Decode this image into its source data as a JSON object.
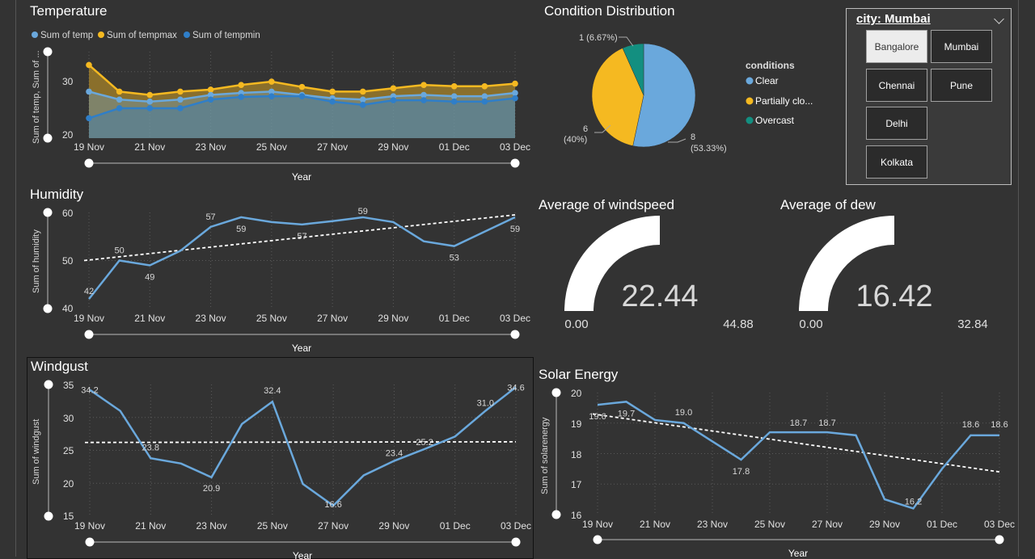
{
  "x_ticks": [
    "19 Nov",
    "21 Nov",
    "23 Nov",
    "25 Nov",
    "27 Nov",
    "29 Nov",
    "01 Dec",
    "03 Dec"
  ],
  "x_axis_title": "Year",
  "colors": {
    "temp": "#6aa8dc",
    "tempmax": "#f5b921",
    "tempmin": "#2f7ec8",
    "line": "#6aa8dc",
    "clear": "#6aa8dc",
    "partly": "#f5b921",
    "overcast": "#138f80"
  },
  "temperature": {
    "title": "Temperature",
    "legend": [
      "Sum of temp",
      "Sum of tempmax",
      "Sum of tempmin"
    ],
    "ylabel": "Sum of temp, Sum of ...",
    "yticks": [
      "30",
      "20"
    ]
  },
  "humidity": {
    "title": "Humidity",
    "ylabel": "Sum of humidity",
    "yticks": [
      "60",
      "50",
      "40"
    ],
    "labels": [
      "42",
      "50",
      "49",
      "57",
      "59",
      "57",
      "59",
      "53",
      "59"
    ]
  },
  "windgust": {
    "title": "Windgust",
    "ylabel": "Sum of windgust",
    "yticks": [
      "35",
      "30",
      "25",
      "20",
      "15"
    ],
    "labels": [
      "34.2",
      "23.8",
      "20.9",
      "32.4",
      "16.6",
      "23.4",
      "25.2",
      "31.0",
      "34.6"
    ]
  },
  "solar": {
    "title": "Solar Energy",
    "ylabel": "Sum of solarenergy",
    "yticks": [
      "20",
      "19",
      "18",
      "17",
      "16"
    ],
    "x_ticks": [
      "19 Nov",
      "21 Nov",
      "23 Nov",
      "25 Nov",
      "27 Nov",
      "29 Nov",
      "01 Dec",
      "03 Dec"
    ],
    "labels": [
      "19.6",
      "19.7",
      "19.0",
      "17.8",
      "18.7",
      "18.7",
      "16.2",
      "18.6",
      "18.6"
    ]
  },
  "condition": {
    "title": "Condition Distribution",
    "legend_title": "conditions",
    "legend": [
      "Clear",
      "Partially clo...",
      "Overcast"
    ],
    "label_overcast": "1 (6.67%)",
    "label_partly_count": "6",
    "label_partly_pct": "(40%)",
    "label_clear_count": "8",
    "label_clear_pct": "(53.33%)"
  },
  "windspeed": {
    "title": "Average of windspeed",
    "value": "22.44",
    "min": "0.00",
    "max": "44.88"
  },
  "dew": {
    "title": "Average of dew",
    "value": "16.42",
    "min": "0.00",
    "max": "32.84"
  },
  "slicer": {
    "header": "city: Mumbai",
    "cities": [
      "Bangalore",
      "Mumbai",
      "Chennai",
      "Pune",
      "Delhi",
      "Kolkata"
    ]
  },
  "chart_data": [
    {
      "type": "area",
      "title": "Temperature",
      "x": [
        "19 Nov",
        "20 Nov",
        "21 Nov",
        "22 Nov",
        "23 Nov",
        "24 Nov",
        "25 Nov",
        "26 Nov",
        "27 Nov",
        "28 Nov",
        "29 Nov",
        "30 Nov",
        "01 Dec",
        "02 Dec",
        "03 Dec"
      ],
      "series": [
        {
          "name": "Sum of tempmax",
          "values": [
            31,
            27,
            26.5,
            27,
            27.3,
            28,
            28.5,
            27.7,
            27,
            27,
            27.5,
            28,
            27.8,
            27.8,
            28.2
          ]
        },
        {
          "name": "Sum of temp",
          "values": [
            27,
            25.8,
            25.5,
            25.8,
            26.5,
            26.8,
            27,
            26.5,
            26,
            25.8,
            26.3,
            26.5,
            26.3,
            26.3,
            26.8
          ]
        },
        {
          "name": "Sum of tempmin",
          "values": [
            23,
            24.5,
            24.5,
            24.5,
            25.8,
            26.2,
            26.3,
            26.3,
            25.5,
            25,
            25.7,
            25.7,
            25.5,
            25.5,
            26
          ]
        }
      ],
      "ylabel": "Sum of temp, Sum of ...",
      "xlabel": "Year",
      "ylim": [
        20,
        33
      ]
    },
    {
      "type": "line",
      "title": "Humidity",
      "x": [
        "19 Nov",
        "20 Nov",
        "21 Nov",
        "22 Nov",
        "23 Nov",
        "24 Nov",
        "25 Nov",
        "26 Nov",
        "27 Nov",
        "28 Nov",
        "29 Nov",
        "30 Nov",
        "01 Dec",
        "02 Dec",
        "03 Dec"
      ],
      "values": [
        42,
        50,
        49,
        52,
        57,
        59,
        58,
        57.5,
        58.2,
        59,
        58,
        54,
        53,
        56,
        59
      ],
      "trend": [
        50,
        59.5
      ],
      "ylabel": "Sum of humidity",
      "xlabel": "Year",
      "ylim": [
        40,
        60
      ]
    },
    {
      "type": "line",
      "title": "Windgust",
      "x": [
        "19 Nov",
        "20 Nov",
        "21 Nov",
        "22 Nov",
        "23 Nov",
        "24 Nov",
        "25 Nov",
        "26 Nov",
        "27 Nov",
        "28 Nov",
        "29 Nov",
        "30 Nov",
        "01 Dec",
        "02 Dec",
        "03 Dec"
      ],
      "values": [
        34.2,
        31,
        23.8,
        23,
        20.9,
        29,
        32.4,
        19.9,
        16.6,
        21.2,
        23.4,
        25.2,
        27.1,
        31.0,
        34.6
      ],
      "trend": [
        26.2,
        26.3
      ],
      "ylabel": "Sum of windgust",
      "xlabel": "Year",
      "ylim": [
        15,
        35
      ]
    },
    {
      "type": "line",
      "title": "Solar Energy",
      "x": [
        "19 Nov",
        "20 Nov",
        "21 Nov",
        "22 Nov",
        "23 Nov",
        "24 Nov",
        "25 Nov",
        "26 Nov",
        "27 Nov",
        "28 Nov",
        "29 Nov",
        "30 Nov",
        "01 Dec",
        "02 Dec",
        "03 Dec"
      ],
      "values": [
        19.6,
        19.7,
        19.1,
        19.0,
        18.4,
        17.8,
        18.7,
        18.7,
        18.7,
        18.6,
        16.5,
        16.2,
        17.5,
        18.6,
        18.6
      ],
      "trend": [
        19.3,
        17.4
      ],
      "ylabel": "Sum of solarenergy",
      "xlabel": "Year",
      "ylim": [
        16,
        20
      ]
    },
    {
      "type": "pie",
      "title": "Condition Distribution",
      "categories": [
        "Clear",
        "Partially clo...",
        "Overcast"
      ],
      "values": [
        8,
        6,
        1
      ]
    }
  ]
}
